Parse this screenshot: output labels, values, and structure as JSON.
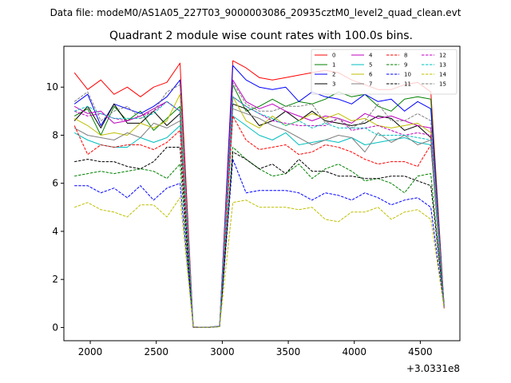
{
  "chart_data": {
    "type": "line",
    "suptitle": "Data file: modeM0/AS1A05_227T03_9000003086_20935cztM0_level2_quad_clean.evt",
    "title": "Quadrant 2 module wise count rates with 100.0s bins.",
    "xlabel": "",
    "ylabel": "",
    "offset_label": "+3.0331e8",
    "xlim": [
      1800,
      4800
    ],
    "ylim": [
      -0.55,
      11.7
    ],
    "xticks": [
      2000,
      2500,
      3000,
      3500,
      4000,
      4500
    ],
    "yticks": [
      0,
      2,
      4,
      6,
      8,
      10
    ],
    "legend_position": "upper-right",
    "x": [
      1880,
      1980,
      2080,
      2180,
      2280,
      2380,
      2480,
      2580,
      2680,
      2780,
      2880,
      2980,
      3080,
      3180,
      3280,
      3380,
      3480,
      3580,
      3680,
      3780,
      3880,
      3980,
      4080,
      4180,
      4280,
      4380,
      4480,
      4580,
      4680
    ],
    "series": [
      {
        "name": "0",
        "color": "#ff0000",
        "dash": "solid",
        "values": [
          10.6,
          9.9,
          10.3,
          9.7,
          10.0,
          9.6,
          10.0,
          10.2,
          11.0,
          0.02,
          0.0,
          0.05,
          11.1,
          10.8,
          10.4,
          10.3,
          10.4,
          10.5,
          10.6,
          10.7,
          10.6,
          10.3,
          10.1,
          9.9,
          9.9,
          10.1,
          10.2,
          9.8,
          0.9
        ]
      },
      {
        "name": "1",
        "color": "#008000",
        "dash": "solid",
        "values": [
          8.8,
          9.1,
          8.0,
          9.2,
          8.6,
          9.0,
          8.2,
          8.7,
          9.2,
          0.01,
          0.0,
          0.04,
          10.1,
          9.0,
          9.2,
          9.5,
          9.2,
          9.4,
          9.3,
          9.5,
          9.8,
          9.6,
          9.7,
          9.2,
          9.0,
          9.5,
          9.6,
          9.5,
          0.8
        ]
      },
      {
        "name": "2",
        "color": "#0000ff",
        "dash": "solid",
        "values": [
          9.3,
          9.7,
          8.4,
          9.3,
          9.1,
          8.9,
          9.2,
          9.6,
          10.3,
          0.02,
          0.0,
          0.06,
          10.9,
          10.3,
          10.0,
          9.9,
          10.0,
          9.4,
          9.8,
          9.6,
          9.5,
          9.3,
          9.7,
          9.4,
          9.5,
          9.0,
          9.4,
          9.1,
          0.9
        ]
      },
      {
        "name": "3",
        "color": "#000000",
        "dash": "solid",
        "values": [
          8.6,
          9.2,
          8.3,
          9.3,
          8.5,
          8.5,
          9.0,
          8.4,
          8.9,
          0.01,
          0.0,
          0.05,
          9.3,
          9.1,
          8.4,
          8.6,
          9.0,
          8.6,
          9.0,
          8.6,
          8.5,
          8.4,
          8.5,
          8.8,
          8.7,
          8.2,
          8.4,
          7.9,
          0.9
        ]
      },
      {
        "name": "4",
        "color": "#bf00bf",
        "dash": "solid",
        "values": [
          9.2,
          8.9,
          9.0,
          8.5,
          8.6,
          8.8,
          9.1,
          9.4,
          9.0,
          0.01,
          0.0,
          0.05,
          10.3,
          9.4,
          9.1,
          9.3,
          9.0,
          8.8,
          8.6,
          8.8,
          8.7,
          8.5,
          8.9,
          8.7,
          8.8,
          8.6,
          8.4,
          8.3,
          0.8
        ]
      },
      {
        "name": "5",
        "color": "#00bfbf",
        "dash": "solid",
        "values": [
          8.1,
          7.8,
          7.6,
          7.5,
          7.5,
          7.9,
          7.7,
          7.9,
          8.4,
          0.01,
          0.0,
          0.04,
          8.8,
          8.4,
          8.0,
          7.8,
          8.1,
          7.6,
          7.7,
          7.8,
          7.7,
          7.9,
          7.6,
          7.7,
          7.8,
          7.9,
          7.7,
          7.6,
          0.8
        ]
      },
      {
        "name": "6",
        "color": "#bfbf00",
        "dash": "solid",
        "values": [
          8.7,
          8.4,
          8.0,
          8.1,
          8.0,
          8.5,
          8.3,
          8.6,
          9.7,
          0.01,
          0.0,
          0.05,
          9.6,
          8.6,
          8.3,
          8.8,
          8.4,
          8.6,
          8.9,
          8.7,
          8.9,
          8.6,
          8.7,
          8.4,
          8.3,
          8.4,
          8.5,
          8.1,
          0.9
        ]
      },
      {
        "name": "7",
        "color": "#808080",
        "dash": "solid",
        "values": [
          8.3,
          8.0,
          7.9,
          7.8,
          8.1,
          7.9,
          8.5,
          8.3,
          8.6,
          0.01,
          0.0,
          0.04,
          9.1,
          8.9,
          8.7,
          8.4,
          8.2,
          7.9,
          7.6,
          7.8,
          8.0,
          7.9,
          7.3,
          8.1,
          7.7,
          8.0,
          7.6,
          7.8,
          0.8
        ]
      },
      {
        "name": "8",
        "color": "#ff0000",
        "dash": "dashed",
        "values": [
          8.4,
          7.2,
          7.6,
          7.5,
          7.6,
          7.6,
          7.4,
          7.7,
          8.2,
          0.01,
          0.0,
          0.04,
          8.8,
          7.8,
          7.4,
          7.5,
          7.6,
          7.2,
          7.3,
          7.6,
          7.5,
          7.3,
          7.0,
          6.8,
          6.9,
          6.9,
          6.7,
          7.6,
          0.8
        ]
      },
      {
        "name": "9",
        "color": "#008000",
        "dash": "dashed",
        "values": [
          6.3,
          6.4,
          6.5,
          6.4,
          6.5,
          6.6,
          6.5,
          6.2,
          6.8,
          0.01,
          0.0,
          0.04,
          7.5,
          7.0,
          6.6,
          6.3,
          6.4,
          6.8,
          6.2,
          6.6,
          6.8,
          6.5,
          6.1,
          6.2,
          6.0,
          5.6,
          6.3,
          6.4,
          0.8
        ]
      },
      {
        "name": "10",
        "color": "#0000ff",
        "dash": "dashed",
        "values": [
          5.9,
          5.9,
          5.6,
          5.8,
          5.4,
          5.9,
          5.3,
          5.8,
          6.0,
          0.01,
          0.0,
          0.03,
          7.0,
          5.6,
          5.7,
          5.7,
          5.7,
          5.6,
          5.3,
          5.6,
          5.5,
          5.3,
          5.6,
          5.4,
          5.1,
          5.3,
          5.4,
          5.0,
          0.8
        ]
      },
      {
        "name": "11",
        "color": "#000000",
        "dash": "dashed",
        "values": [
          6.9,
          7.0,
          6.9,
          6.9,
          6.7,
          6.6,
          6.9,
          7.5,
          7.5,
          0.01,
          0.0,
          0.04,
          7.3,
          7.0,
          6.6,
          6.8,
          6.4,
          7.0,
          6.5,
          6.5,
          6.3,
          6.3,
          6.2,
          6.2,
          6.3,
          6.3,
          6.1,
          5.9,
          1.0
        ]
      },
      {
        "name": "12",
        "color": "#bf00bf",
        "dash": "dashed",
        "values": [
          9.0,
          8.8,
          8.9,
          8.7,
          8.6,
          8.8,
          9.0,
          9.4,
          9.0,
          0.01,
          0.0,
          0.05,
          9.6,
          9.2,
          8.9,
          8.6,
          8.5,
          8.4,
          8.4,
          8.4,
          8.7,
          8.2,
          8.3,
          8.4,
          8.2,
          8.0,
          8.1,
          8.0,
          0.8
        ]
      },
      {
        "name": "13",
        "color": "#00bfbf",
        "dash": "dashed",
        "values": [
          9.0,
          9.2,
          8.9,
          8.7,
          8.7,
          8.7,
          8.9,
          9.4,
          9.0,
          0.01,
          0.0,
          0.05,
          9.6,
          9.2,
          8.9,
          8.7,
          8.4,
          8.6,
          8.3,
          8.5,
          8.3,
          8.3,
          8.3,
          8.0,
          8.0,
          8.0,
          7.9,
          7.8,
          0.9
        ]
      },
      {
        "name": "14",
        "color": "#bfbf00",
        "dash": "dashed",
        "values": [
          5.0,
          5.2,
          4.9,
          4.8,
          4.6,
          5.1,
          5.1,
          4.6,
          5.4,
          0.01,
          0.0,
          0.03,
          5.2,
          5.3,
          5.0,
          5.0,
          5.0,
          4.9,
          5.0,
          4.5,
          4.4,
          4.8,
          4.8,
          5.0,
          4.5,
          4.8,
          4.9,
          4.5,
          0.8
        ]
      },
      {
        "name": "15",
        "color": "#808080",
        "dash": "dashed",
        "values": [
          9.4,
          9.8,
          8.6,
          9.0,
          9.2,
          8.7,
          9.0,
          9.8,
          10.1,
          0.02,
          0.0,
          0.05,
          10.2,
          9.3,
          9.0,
          9.0,
          9.2,
          9.2,
          9.3,
          8.5,
          8.7,
          8.3,
          8.6,
          9.3,
          8.6,
          8.6,
          8.9,
          8.6,
          0.9
        ]
      }
    ]
  }
}
